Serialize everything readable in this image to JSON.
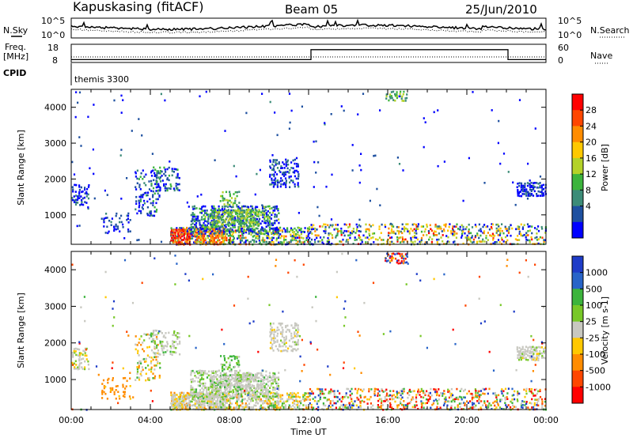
{
  "header": {
    "station": "Kapuskasing (fitACF)",
    "beam": "Beam 05",
    "date": "25/Jun/2010"
  },
  "top_panels": {
    "nsky_label": "N.Sky",
    "nsearch_label": "N.Search",
    "noise_ticks": [
      "10^5",
      "10^0"
    ],
    "freq_label_1": "Freq.",
    "freq_label_2": "[MHz]",
    "freq_ticks": [
      "18",
      "8"
    ],
    "nave_label": "Nave",
    "nave_ticks": [
      "60",
      "0"
    ],
    "cpid_label": "CPID",
    "cpid_text": "themis 3300"
  },
  "chart_data": [
    {
      "type": "heatmap",
      "name": "power",
      "ylabel": "Slant Range [km]",
      "ylim": [
        180,
        4500
      ],
      "yticks": [
        1000,
        2000,
        3000,
        4000
      ],
      "xlim": [
        0,
        24
      ],
      "xticks": [
        "00:00",
        "04:00",
        "08:00",
        "12:00",
        "16:00",
        "20:00",
        "00:00"
      ],
      "colorbar": {
        "label": "Power [dB]",
        "ticks": [
          "4",
          "8",
          "12",
          "16",
          "20",
          "24",
          "28"
        ],
        "colors": [
          "#0000ff",
          "#1e50a0",
          "#3c8c78",
          "#3cb43c",
          "#b4d228",
          "#ffc800",
          "#ff8c00",
          "#ff4600",
          "#ff0000"
        ]
      }
    },
    {
      "type": "heatmap",
      "name": "velocity",
      "ylabel": "Slant Range [km]",
      "ylim": [
        180,
        4500
      ],
      "yticks": [
        1000,
        2000,
        3000,
        4000
      ],
      "xlim": [
        0,
        24
      ],
      "xticks": [
        "00:00",
        "04:00",
        "08:00",
        "12:00",
        "16:00",
        "20:00",
        "00:00"
      ],
      "xlabel": "Time UT",
      "colorbar": {
        "label": "Velocity [m s-1]",
        "ticks": [
          "1000",
          "500",
          "100",
          "25",
          "-25",
          "-100",
          "-500",
          "-1000"
        ],
        "colors": [
          "#1e3cc8",
          "#2864c8",
          "#3cb43c",
          "#78c828",
          "#c8c8c0",
          "#ffc800",
          "#ff8c00",
          "#ff4600",
          "#ff0000"
        ]
      }
    }
  ],
  "regions": [
    {
      "t0": 0.0,
      "t1": 0.9,
      "r0": 1300,
      "r1": 1900,
      "d": 0.5,
      "p": [
        0.6,
        0.3,
        0.1,
        0,
        0,
        0,
        0,
        0,
        0
      ],
      "v": [
        0,
        0,
        0,
        0.1,
        0.7,
        0.2,
        0,
        0,
        0
      ]
    },
    {
      "t0": 1.5,
      "t1": 3.0,
      "r0": 500,
      "r1": 1100,
      "d": 0.2,
      "p": [
        0.4,
        0.4,
        0.2,
        0,
        0,
        0,
        0,
        0,
        0
      ],
      "v": [
        0,
        0,
        0,
        0,
        0,
        0.2,
        0.8,
        0,
        0
      ]
    },
    {
      "t0": 3.2,
      "t1": 4.5,
      "r0": 1000,
      "r1": 2300,
      "d": 0.3,
      "p": [
        0.4,
        0.3,
        0.2,
        0.1,
        0,
        0,
        0,
        0,
        0
      ],
      "v": [
        0,
        0,
        0.1,
        0.1,
        0.3,
        0.2,
        0.3,
        0,
        0
      ]
    },
    {
      "t0": 4.0,
      "t1": 5.5,
      "r0": 1700,
      "r1": 2400,
      "d": 0.35,
      "p": [
        0.3,
        0.3,
        0.2,
        0.2,
        0,
        0,
        0,
        0,
        0
      ],
      "v": [
        0,
        0,
        0.1,
        0.2,
        0.7,
        0,
        0,
        0,
        0
      ]
    },
    {
      "t0": 5.0,
      "t1": 12.0,
      "r0": 200,
      "r1": 700,
      "d": 0.55,
      "p": [
        0.2,
        0.1,
        0.2,
        0.2,
        0.1,
        0.1,
        0.05,
        0.03,
        0.02
      ],
      "v": [
        0,
        0,
        0.1,
        0.2,
        0.4,
        0.2,
        0.1,
        0,
        0
      ]
    },
    {
      "t0": 5.0,
      "t1": 6.0,
      "r0": 200,
      "r1": 650,
      "d": 0.85,
      "p": [
        0,
        0,
        0,
        0,
        0,
        0,
        0.2,
        0.4,
        0.4
      ],
      "v": [
        0,
        0,
        0,
        0,
        0.6,
        0.3,
        0.1,
        0,
        0
      ]
    },
    {
      "t0": 6.2,
      "t1": 7.8,
      "r0": 200,
      "r1": 700,
      "d": 0.75,
      "p": [
        0,
        0,
        0,
        0,
        0.1,
        0.2,
        0.4,
        0.3,
        0
      ],
      "v": [
        0,
        0,
        0.05,
        0.1,
        0.7,
        0.15,
        0,
        0,
        0
      ]
    },
    {
      "t0": 6.0,
      "t1": 10.5,
      "r0": 500,
      "r1": 1300,
      "d": 0.6,
      "p": [
        0.3,
        0.2,
        0.2,
        0.2,
        0.1,
        0,
        0,
        0,
        0
      ],
      "v": [
        0,
        0,
        0.1,
        0.2,
        0.7,
        0,
        0,
        0,
        0
      ]
    },
    {
      "t0": 7.0,
      "t1": 9.5,
      "r0": 700,
      "r1": 1200,
      "d": 0.6,
      "p": [
        0,
        0,
        0.2,
        0.4,
        0.4,
        0,
        0,
        0,
        0
      ],
      "v": [
        0,
        0,
        0.1,
        0.1,
        0.8,
        0,
        0,
        0,
        0
      ]
    },
    {
      "t0": 7.5,
      "t1": 8.5,
      "r0": 1300,
      "r1": 1700,
      "d": 0.4,
      "p": [
        0,
        0,
        0.2,
        0.5,
        0.3,
        0,
        0,
        0,
        0
      ],
      "v": [
        0,
        0,
        0.4,
        0.4,
        0.2,
        0,
        0,
        0,
        0
      ]
    },
    {
      "t0": 10.0,
      "t1": 11.5,
      "r0": 1800,
      "r1": 2600,
      "d": 0.4,
      "p": [
        0.5,
        0.3,
        0.2,
        0,
        0,
        0,
        0,
        0,
        0
      ],
      "v": [
        0,
        0,
        0,
        0.1,
        0.8,
        0.1,
        0,
        0,
        0
      ]
    },
    {
      "t0": 12.0,
      "t1": 24.0,
      "r0": 200,
      "r1": 800,
      "d": 0.35,
      "p": [
        0.15,
        0.1,
        0.1,
        0.1,
        0.2,
        0.15,
        0.1,
        0.05,
        0.05
      ],
      "v": [
        0.1,
        0.05,
        0.1,
        0.1,
        0.2,
        0.1,
        0.1,
        0.1,
        0.15
      ]
    },
    {
      "t0": 15.8,
      "t1": 17.0,
      "r0": 4200,
      "r1": 4500,
      "d": 0.5,
      "p": [
        0,
        0,
        0.4,
        0.3,
        0.3,
        0,
        0,
        0,
        0
      ],
      "v": [
        0.3,
        0.1,
        0,
        0,
        0,
        0.1,
        0.1,
        0.1,
        0.3
      ]
    },
    {
      "t0": 22.5,
      "t1": 24.0,
      "r0": 1550,
      "r1": 1950,
      "d": 0.7,
      "p": [
        0.6,
        0.3,
        0.1,
        0,
        0,
        0,
        0,
        0,
        0
      ],
      "v": [
        0,
        0,
        0,
        0.1,
        0.8,
        0.1,
        0,
        0,
        0
      ]
    },
    {
      "t0": 0.0,
      "t1": 24.0,
      "r0": 200,
      "r1": 4500,
      "d": 0.008,
      "p": [
        0.6,
        0.3,
        0.1,
        0,
        0,
        0,
        0,
        0,
        0
      ],
      "v": [
        0.2,
        0.1,
        0.1,
        0.1,
        0.1,
        0.1,
        0.1,
        0.1,
        0.1
      ]
    }
  ]
}
